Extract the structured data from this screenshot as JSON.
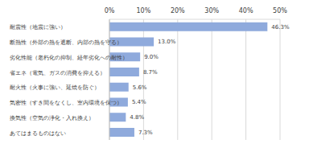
{
  "chart_data": {
    "type": "bar",
    "orientation": "horizontal",
    "categories": [
      "耐震性（地震に強い）",
      "断熱性（外部の熱を遮断、内部の熱を守る）",
      "劣化性能（老朽化の抑制、経年劣化への耐性）",
      "省エネ（電気、ガスの消費を抑える）",
      "耐火性（火事に強い、延焼を防ぐ）",
      "気密性（すき間をなくし、室内環境を保つ）",
      "換気性（空気の浄化・入れ換え）",
      "あてはまるものはない"
    ],
    "values": [
      46.3,
      13.0,
      9.0,
      8.7,
      5.6,
      5.4,
      4.8,
      7.3
    ],
    "value_labels": [
      "46.3%",
      "13.0%",
      "9.0%",
      "8.7%",
      "5.6%",
      "5.4%",
      "4.8%",
      "7.3%"
    ],
    "data_labels": true,
    "color": "#8faadc",
    "xlim": [
      0,
      50
    ],
    "xticks": [
      {
        "value": 0,
        "label": "0%"
      },
      {
        "value": 10,
        "label": "10%"
      },
      {
        "value": 20,
        "label": "20%"
      },
      {
        "value": 30,
        "label": "30%"
      },
      {
        "value": 40,
        "label": "40%"
      },
      {
        "value": 50,
        "label": "50%"
      }
    ],
    "grid": true
  }
}
